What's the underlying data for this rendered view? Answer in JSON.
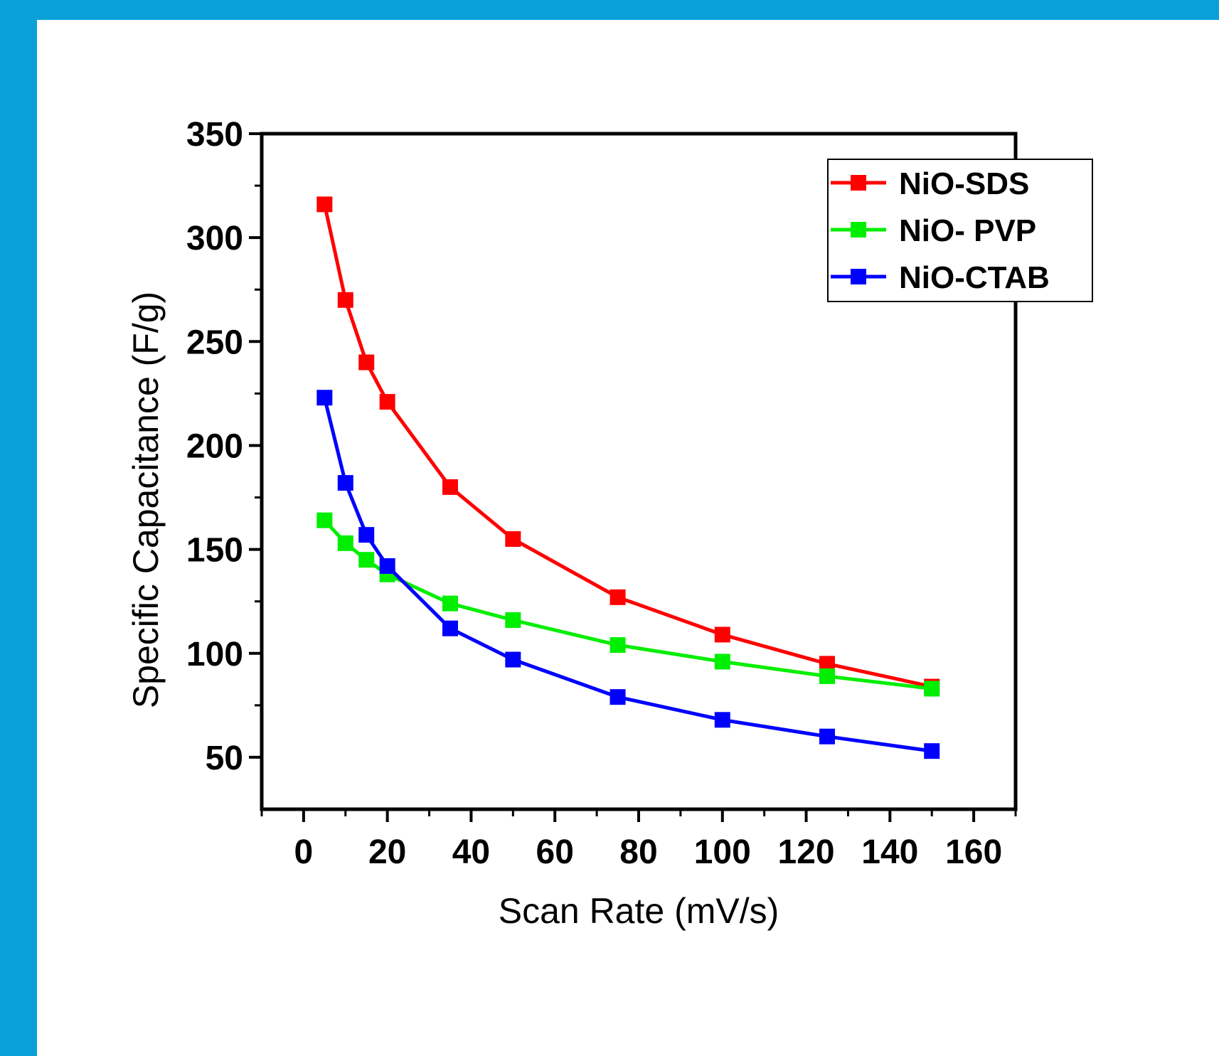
{
  "chart_data": {
    "type": "line",
    "xlabel": "Scan  Rate (mV/s)",
    "ylabel": "Specific Capacitance (F/g)",
    "xlim": [
      -10,
      170
    ],
    "ylim": [
      25,
      350
    ],
    "x_ticks": [
      0,
      20,
      40,
      60,
      80,
      100,
      120,
      140,
      160
    ],
    "y_ticks": [
      50,
      100,
      150,
      200,
      250,
      300,
      350
    ],
    "x_minor_ticks": [
      -10,
      10,
      30,
      50,
      70,
      90,
      110,
      130,
      150,
      170
    ],
    "y_minor_ticks": [
      75,
      125,
      175,
      225,
      275,
      325
    ],
    "x": [
      5,
      10,
      15,
      20,
      35,
      50,
      75,
      100,
      125,
      150
    ],
    "legend_position": "top-right",
    "grid": false,
    "series": [
      {
        "name": "NiO-SDS",
        "color": "#ff0000",
        "values": [
          316,
          270,
          240,
          221,
          180,
          155,
          127,
          109,
          95,
          84
        ]
      },
      {
        "name": "NiO- PVP",
        "color": "#00ee00",
        "values": [
          164,
          153,
          145,
          138,
          124,
          116,
          104,
          96,
          89,
          83
        ]
      },
      {
        "name": "NiO-CTAB",
        "color": "#0000ff",
        "values": [
          223,
          182,
          157,
          142,
          112,
          97,
          79,
          68,
          60,
          53
        ]
      }
    ]
  }
}
